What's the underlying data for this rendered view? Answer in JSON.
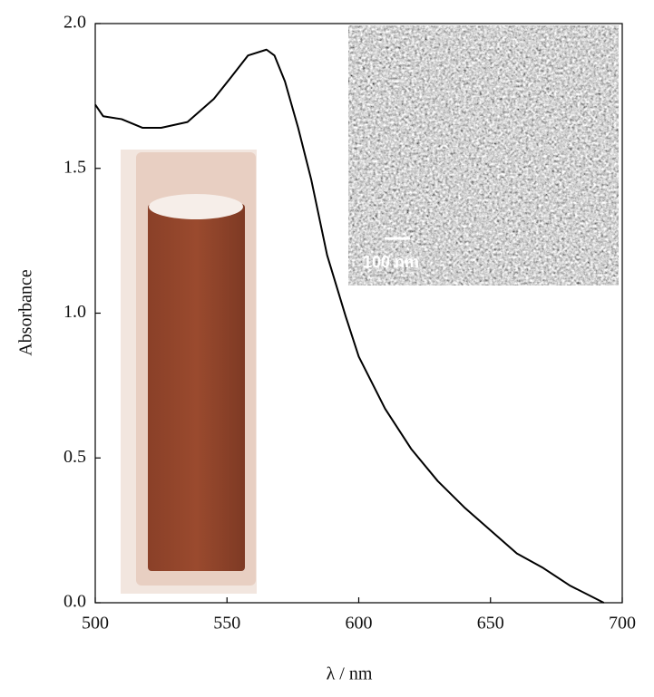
{
  "chart_data": {
    "type": "line",
    "xlabel": "λ / nm",
    "ylabel": "Absorbance",
    "inset_label": "100 nm",
    "x": [
      500,
      503,
      510,
      518,
      525,
      535,
      545,
      552,
      558,
      565,
      568,
      572,
      577,
      582,
      588,
      595,
      600,
      610,
      620,
      630,
      640,
      650,
      660,
      670,
      680,
      693
    ],
    "series": [
      {
        "color": "#000000",
        "values": [
          1.72,
          1.68,
          1.67,
          1.64,
          1.64,
          1.66,
          1.74,
          1.82,
          1.89,
          1.91,
          1.89,
          1.8,
          1.64,
          1.46,
          1.2,
          0.99,
          0.85,
          0.67,
          0.53,
          0.42,
          0.33,
          0.25,
          0.17,
          0.12,
          0.06,
          0.0
        ]
      }
    ],
    "xlim": [
      500,
      700
    ],
    "xticks": [
      500,
      550,
      600,
      650,
      700
    ],
    "ylim": [
      0,
      2
    ],
    "yticks": [
      {
        "value": 0,
        "label": "0.0"
      },
      {
        "value": 0.5,
        "label": "0.5"
      },
      {
        "value": 1,
        "label": "1.0"
      },
      {
        "value": 1.5,
        "label": "1.5"
      },
      {
        "value": 2,
        "label": "2.0"
      }
    ]
  }
}
